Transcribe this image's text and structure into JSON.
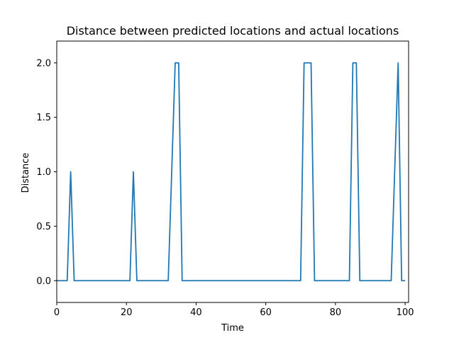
{
  "chart_data": {
    "type": "line",
    "title": "Distance between predicted locations and actual locations",
    "xlabel": "Time",
    "ylabel": "Distance",
    "xlim": [
      0,
      101
    ],
    "ylim": [
      -0.2,
      2.2
    ],
    "xticks": [
      0,
      20,
      40,
      60,
      80,
      100
    ],
    "xtick_labels": [
      "0",
      "20",
      "40",
      "60",
      "80",
      "100"
    ],
    "yticks": [
      0.0,
      0.5,
      1.0,
      1.5,
      2.0
    ],
    "ytick_labels": [
      "0.0",
      "0.5",
      "1.0",
      "1.5",
      "2.0"
    ],
    "grid": false,
    "series": [
      {
        "color": "#1f77b4",
        "x": [
          0,
          1,
          2,
          3,
          4,
          5,
          6,
          7,
          8,
          9,
          10,
          11,
          12,
          13,
          14,
          15,
          16,
          17,
          18,
          19,
          20,
          21,
          22,
          23,
          24,
          25,
          26,
          27,
          28,
          29,
          30,
          31,
          32,
          33,
          34,
          35,
          36,
          37,
          38,
          39,
          40,
          41,
          42,
          43,
          44,
          45,
          46,
          47,
          48,
          49,
          50,
          51,
          52,
          53,
          54,
          55,
          56,
          57,
          58,
          59,
          60,
          61,
          62,
          63,
          64,
          65,
          66,
          67,
          68,
          69,
          70,
          71,
          72,
          73,
          74,
          75,
          76,
          77,
          78,
          79,
          80,
          81,
          82,
          83,
          84,
          85,
          86,
          87,
          88,
          89,
          90,
          91,
          92,
          93,
          94,
          95,
          96,
          97,
          98,
          99,
          100
        ],
        "values": [
          0,
          0,
          0,
          0,
          1,
          0,
          0,
          0,
          0,
          0,
          0,
          0,
          0,
          0,
          0,
          0,
          0,
          0,
          0,
          0,
          0,
          0,
          1,
          0,
          0,
          0,
          0,
          0,
          0,
          0,
          0,
          0,
          0,
          1,
          2,
          2,
          0,
          0,
          0,
          0,
          0,
          0,
          0,
          0,
          0,
          0,
          0,
          0,
          0,
          0,
          0,
          0,
          0,
          0,
          0,
          0,
          0,
          0,
          0,
          0,
          0,
          0,
          0,
          0,
          0,
          0,
          0,
          0,
          0,
          0,
          0,
          2,
          2,
          2,
          0,
          0,
          0,
          0,
          0,
          0,
          0,
          0,
          0,
          0,
          0,
          2,
          2,
          0,
          0,
          0,
          0,
          0,
          0,
          0,
          0,
          0,
          0,
          1,
          2,
          0,
          0
        ]
      }
    ]
  }
}
